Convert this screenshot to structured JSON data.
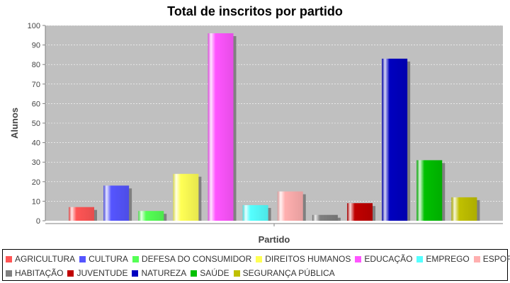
{
  "chart_data": {
    "type": "bar",
    "title": "Total de inscritos por partido",
    "xlabel": "Partido",
    "ylabel": "Alunos",
    "ylim": [
      0,
      100
    ],
    "yticks": [
      0,
      10,
      20,
      30,
      40,
      50,
      60,
      70,
      80,
      90,
      100
    ],
    "grid": true,
    "legend_placement": "bottom",
    "categories": [
      "AGRICULTURA",
      "CULTURA",
      "DEFESA DO CONSUMIDOR",
      "DIREITOS HUMANOS",
      "EDUCAÇÃO",
      "EMPREGO",
      "ESPORTES",
      "HABITAÇÃO",
      "JUVENTUDE",
      "NATUREZA",
      "SAÚDE",
      "SEGURANÇA PÚBLICA"
    ],
    "values": [
      7,
      18,
      5,
      24,
      96,
      8,
      15,
      3,
      9,
      83,
      31,
      12
    ],
    "colors": [
      "#ff5555",
      "#5555ff",
      "#55ff55",
      "#ffff55",
      "#ff55ff",
      "#55ffff",
      "#ffafaf",
      "#808080",
      "#c00000",
      "#0000c0",
      "#00c000",
      "#c0c000"
    ]
  }
}
